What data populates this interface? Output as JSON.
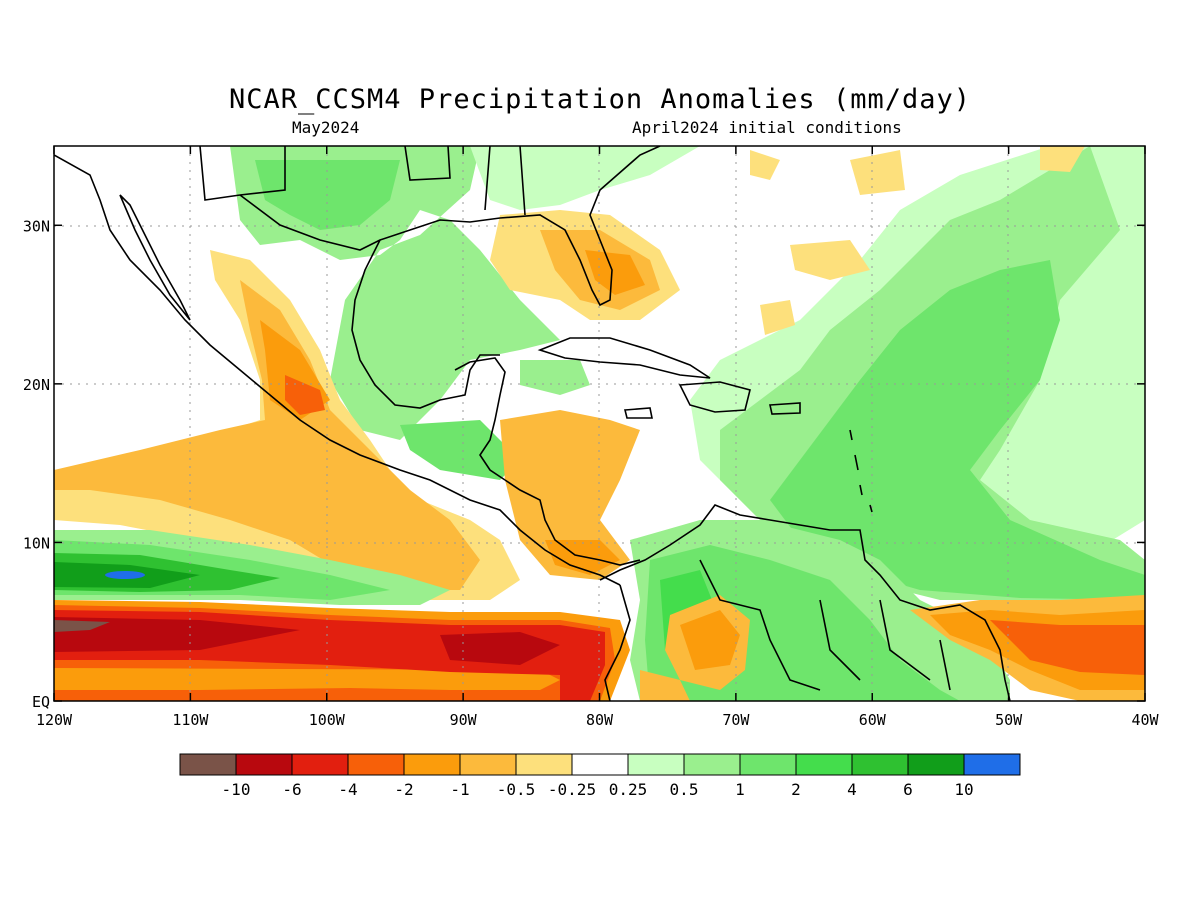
{
  "header": {
    "title": "NCAR_CCSM4 Precipitation Anomalies (mm/day)",
    "subtitle_left": "May2024",
    "subtitle_right": "April2024 initial conditions"
  },
  "map": {
    "region": "Central America, Caribbean and northern South America",
    "lon_range": [
      -120,
      -40
    ],
    "lat_range": [
      0,
      35
    ],
    "lon_ticks": [
      "120W",
      "110W",
      "100W",
      "90W",
      "80W",
      "70W",
      "60W",
      "50W",
      "40W"
    ],
    "lat_ticks": [
      "EQ",
      "10N",
      "20N",
      "30N"
    ],
    "grid": "dotted"
  },
  "legend": {
    "colors": [
      "#7a5348",
      "#b8080e",
      "#e21f0f",
      "#f76009",
      "#fb9c0c",
      "#fcba3c",
      "#fde07c",
      "#ffffff",
      "#c8ffc0",
      "#9aef8e",
      "#6ee56c",
      "#44dd4c",
      "#2fc131",
      "#119e1a",
      "#1f6ee8"
    ],
    "labels": [
      "-10",
      "-6",
      "-4",
      "-2",
      "-1",
      "-0.5",
      "-0.25",
      "0.25",
      "0.5",
      "1",
      "2",
      "4",
      "6",
      "10"
    ]
  }
}
